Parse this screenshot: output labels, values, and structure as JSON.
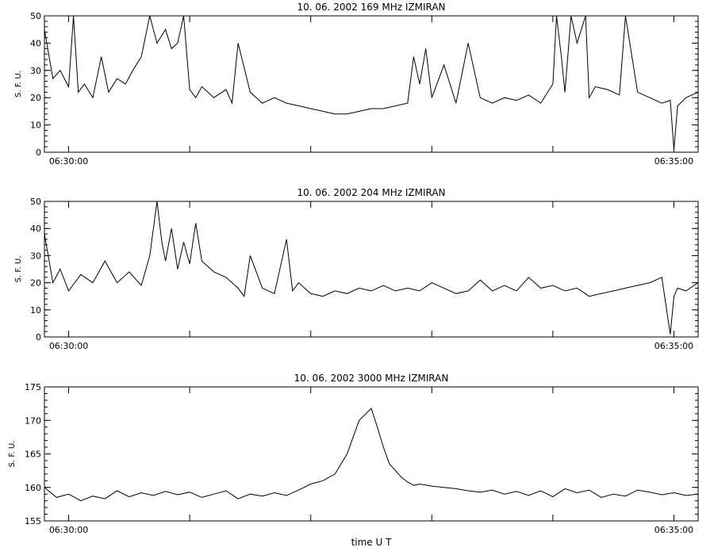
{
  "figure": {
    "xlabel": "time  U T"
  },
  "chart_data": [
    {
      "type": "line",
      "title": "10.  06.  2002    169 MHz    IZMIRAN",
      "ylabel": "S. F. U.",
      "xlim": [
        -0.2,
        5.2
      ],
      "ylim": [
        0,
        50
      ],
      "yticks": [
        0,
        10,
        20,
        30,
        40,
        50
      ],
      "xticks": [
        {
          "x": 0,
          "label": "06:30:00"
        },
        {
          "x": 1
        },
        {
          "x": 2
        },
        {
          "x": 3
        },
        {
          "x": 4
        },
        {
          "x": 5,
          "label": "06:35:00"
        }
      ],
      "grid": false,
      "x": [
        -0.2,
        -0.13,
        -0.07,
        0,
        0.04,
        0.08,
        0.13,
        0.2,
        0.27,
        0.33,
        0.4,
        0.47,
        0.53,
        0.6,
        0.67,
        0.73,
        0.8,
        0.85,
        0.9,
        0.95,
        1.0,
        1.05,
        1.1,
        1.2,
        1.3,
        1.35,
        1.4,
        1.5,
        1.6,
        1.7,
        1.8,
        1.9,
        2.0,
        2.1,
        2.2,
        2.3,
        2.4,
        2.5,
        2.6,
        2.7,
        2.8,
        2.85,
        2.9,
        2.95,
        3.0,
        3.1,
        3.2,
        3.3,
        3.4,
        3.5,
        3.6,
        3.7,
        3.8,
        3.9,
        4.0,
        4.03,
        4.07,
        4.1,
        4.15,
        4.2,
        4.27,
        4.3,
        4.35,
        4.45,
        4.55,
        4.6,
        4.7,
        4.8,
        4.9,
        4.97,
        5.0,
        5.03,
        5.1,
        5.2
      ],
      "values": [
        45,
        27,
        30,
        24,
        50,
        22,
        25,
        20,
        35,
        22,
        27,
        25,
        30,
        35,
        50,
        40,
        45,
        38,
        40,
        50,
        23,
        20,
        24,
        20,
        23,
        18,
        40,
        22,
        18,
        20,
        18,
        17,
        16,
        15,
        14,
        14,
        15,
        16,
        16,
        17,
        18,
        35,
        25,
        38,
        20,
        32,
        18,
        40,
        20,
        18,
        20,
        19,
        21,
        18,
        25,
        50,
        35,
        22,
        50,
        40,
        50,
        20,
        24,
        23,
        21,
        50,
        22,
        20,
        18,
        19,
        1,
        17,
        20,
        22
      ]
    },
    {
      "type": "line",
      "title": "10.  06.  2002    204 MHz    IZMIRAN",
      "ylabel": "S. F. U.",
      "xlim": [
        -0.2,
        5.2
      ],
      "ylim": [
        0,
        50
      ],
      "yticks": [
        0,
        10,
        20,
        30,
        40,
        50
      ],
      "xticks": [
        {
          "x": 0,
          "label": "06:30:00"
        },
        {
          "x": 1
        },
        {
          "x": 2
        },
        {
          "x": 3
        },
        {
          "x": 4
        },
        {
          "x": 5,
          "label": "06:35:00"
        }
      ],
      "grid": false,
      "x": [
        -0.2,
        -0.13,
        -0.07,
        0,
        0.1,
        0.2,
        0.3,
        0.4,
        0.5,
        0.6,
        0.67,
        0.73,
        0.77,
        0.8,
        0.85,
        0.9,
        0.95,
        1.0,
        1.05,
        1.1,
        1.2,
        1.3,
        1.4,
        1.45,
        1.5,
        1.6,
        1.7,
        1.8,
        1.85,
        1.9,
        2.0,
        2.1,
        2.2,
        2.3,
        2.4,
        2.5,
        2.6,
        2.7,
        2.8,
        2.9,
        3.0,
        3.1,
        3.2,
        3.3,
        3.4,
        3.5,
        3.6,
        3.7,
        3.8,
        3.9,
        4.0,
        4.1,
        4.2,
        4.3,
        4.4,
        4.5,
        4.6,
        4.7,
        4.8,
        4.9,
        4.97,
        5.0,
        5.03,
        5.1,
        5.2
      ],
      "values": [
        38,
        20,
        25,
        17,
        23,
        20,
        28,
        20,
        24,
        19,
        30,
        50,
        35,
        28,
        40,
        25,
        35,
        27,
        42,
        28,
        24,
        22,
        18,
        15,
        30,
        18,
        16,
        36,
        17,
        20,
        16,
        15,
        17,
        16,
        18,
        17,
        19,
        17,
        18,
        17,
        20,
        18,
        16,
        17,
        21,
        17,
        19,
        17,
        22,
        18,
        19,
        17,
        18,
        15,
        16,
        17,
        18,
        19,
        20,
        22,
        1,
        15,
        18,
        17,
        20
      ]
    },
    {
      "type": "line",
      "title": "10.  06.  2002    3000 MHz    IZMIRAN",
      "ylabel": "S. F. U.",
      "xlim": [
        -0.2,
        5.2
      ],
      "ylim": [
        155,
        175
      ],
      "yticks": [
        155,
        160,
        165,
        170,
        175
      ],
      "xticks": [
        {
          "x": 0,
          "label": "06:30:00"
        },
        {
          "x": 1
        },
        {
          "x": 2
        },
        {
          "x": 3
        },
        {
          "x": 4
        },
        {
          "x": 5,
          "label": "06:35:00"
        }
      ],
      "grid": false,
      "x": [
        -0.2,
        -0.1,
        0,
        0.1,
        0.2,
        0.3,
        0.4,
        0.5,
        0.6,
        0.7,
        0.8,
        0.9,
        1.0,
        1.1,
        1.2,
        1.3,
        1.4,
        1.5,
        1.6,
        1.7,
        1.8,
        1.9,
        2.0,
        2.1,
        2.2,
        2.3,
        2.4,
        2.5,
        2.55,
        2.6,
        2.65,
        2.7,
        2.75,
        2.8,
        2.85,
        2.9,
        3.0,
        3.1,
        3.2,
        3.3,
        3.4,
        3.5,
        3.6,
        3.7,
        3.8,
        3.9,
        4.0,
        4.1,
        4.2,
        4.3,
        4.4,
        4.5,
        4.6,
        4.7,
        4.8,
        4.9,
        5.0,
        5.1,
        5.2
      ],
      "values": [
        160,
        158.5,
        159,
        158,
        158.7,
        158.3,
        159.5,
        158.6,
        159.2,
        158.8,
        159.4,
        158.9,
        159.3,
        158.5,
        159,
        159.5,
        158.3,
        159,
        158.7,
        159.2,
        158.8,
        159.6,
        160.5,
        161,
        162,
        165,
        170,
        171.8,
        169,
        166,
        163.5,
        162.5,
        161.5,
        160.8,
        160.3,
        160.5,
        160.2,
        160,
        159.8,
        159.5,
        159.3,
        159.6,
        159,
        159.4,
        158.8,
        159.5,
        158.6,
        159.8,
        159.2,
        159.6,
        158.5,
        159,
        158.7,
        159.6,
        159.3,
        158.9,
        159.2,
        158.8,
        159
      ]
    }
  ]
}
